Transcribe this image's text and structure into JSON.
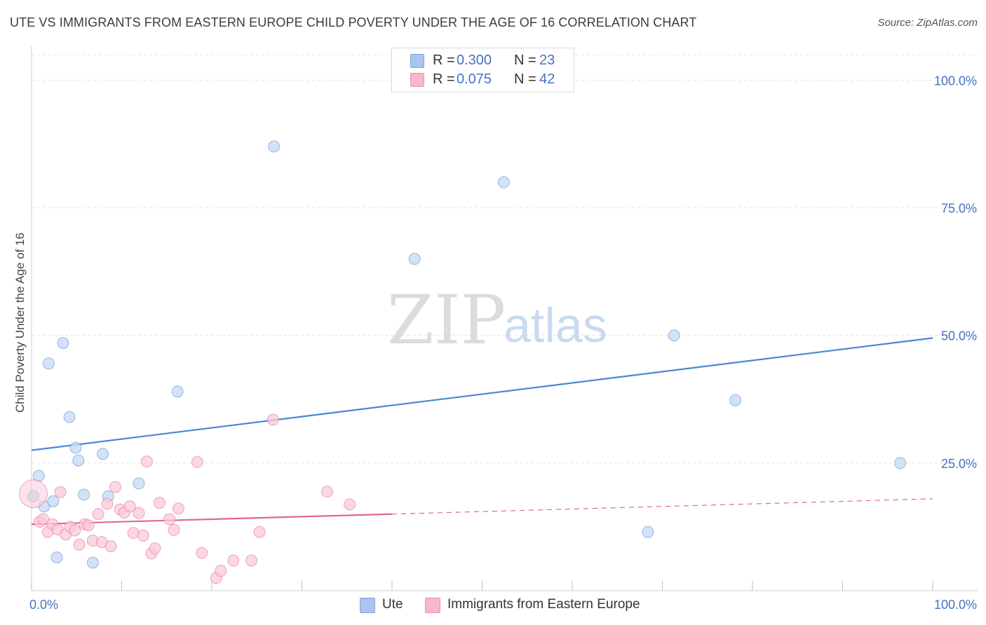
{
  "title": "UTE VS IMMIGRANTS FROM EASTERN EUROPE CHILD POVERTY UNDER THE AGE OF 16 CORRELATION CHART",
  "source": "Source: ZipAtlas.com",
  "watermark": {
    "part1": "ZIP",
    "part2": "atlas"
  },
  "legend": {
    "rows": [
      {
        "r_label": "R =",
        "r_value": "0.300",
        "n_label": "N =",
        "n_value": "23",
        "color": "#a9c5ee",
        "stroke": "#7fa6dd"
      },
      {
        "r_label": "R =",
        "r_value": "0.075",
        "n_label": "N =",
        "n_value": "42",
        "color": "#f6b8cb",
        "stroke": "#ec8fab"
      }
    ]
  },
  "bottom_legend": [
    {
      "label": "Ute",
      "color": "#a9c5ee",
      "stroke": "#7fa6dd"
    },
    {
      "label": "Immigrants from Eastern Europe",
      "color": "#f6b8cb",
      "stroke": "#ec8fab"
    }
  ],
  "chart_data": {
    "type": "scatter",
    "title": "UTE VS IMMIGRANTS FROM EASTERN EUROPE CHILD POVERTY UNDER THE AGE OF 16 CORRELATION CHART",
    "xlabel": "",
    "ylabel": "Child Poverty Under the Age of 16",
    "xlim": [
      0,
      100
    ],
    "ylim": [
      0,
      105
    ],
    "x_tick_labels": [
      "0.0%",
      "100.0%"
    ],
    "y_ticks": [
      25,
      50,
      75,
      100
    ],
    "y_tick_labels": [
      "25.0%",
      "50.0%",
      "75.0%",
      "100.0%"
    ],
    "grid": true,
    "series": [
      {
        "name": "Ute",
        "color": "#4a86d8",
        "fill": "#c5d8f4",
        "trend": {
          "x0": 0,
          "y0": 27.5,
          "x1": 100,
          "y1": 49.5,
          "dashed_from": null
        },
        "points": [
          {
            "x": 0.2,
            "y": 18.5
          },
          {
            "x": 0.8,
            "y": 22.5
          },
          {
            "x": 1.4,
            "y": 16.5
          },
          {
            "x": 1.9,
            "y": 44.5
          },
          {
            "x": 2.4,
            "y": 17.5
          },
          {
            "x": 2.8,
            "y": 6.5
          },
          {
            "x": 3.5,
            "y": 48.5
          },
          {
            "x": 4.2,
            "y": 34.0
          },
          {
            "x": 4.9,
            "y": 28.0
          },
          {
            "x": 5.2,
            "y": 25.5
          },
          {
            "x": 5.8,
            "y": 18.8
          },
          {
            "x": 6.8,
            "y": 5.5
          },
          {
            "x": 7.9,
            "y": 26.8
          },
          {
            "x": 8.5,
            "y": 18.5
          },
          {
            "x": 11.9,
            "y": 21.0
          },
          {
            "x": 16.2,
            "y": 39.0
          },
          {
            "x": 26.9,
            "y": 87.0
          },
          {
            "x": 42.5,
            "y": 65.0
          },
          {
            "x": 52.4,
            "y": 80.0
          },
          {
            "x": 68.4,
            "y": 11.5
          },
          {
            "x": 71.3,
            "y": 50.0
          },
          {
            "x": 78.1,
            "y": 37.3
          },
          {
            "x": 96.4,
            "y": 25.0
          }
        ]
      },
      {
        "name": "Immigrants from Eastern Europe",
        "color": "#e0688f",
        "fill": "#f9cad8",
        "trend": {
          "x0": 0,
          "y0": 13.0,
          "x1": 100,
          "y1": 18.0,
          "dashed_from": 40
        },
        "points": [
          {
            "x": 0.2,
            "y": 19.0,
            "big": true
          },
          {
            "x": 0.9,
            "y": 13.5
          },
          {
            "x": 1.3,
            "y": 14.0
          },
          {
            "x": 1.8,
            "y": 11.5
          },
          {
            "x": 2.3,
            "y": 13.0
          },
          {
            "x": 2.9,
            "y": 12.0
          },
          {
            "x": 3.2,
            "y": 19.3
          },
          {
            "x": 3.8,
            "y": 11.0
          },
          {
            "x": 4.3,
            "y": 12.5
          },
          {
            "x": 4.8,
            "y": 11.8
          },
          {
            "x": 5.3,
            "y": 9.0
          },
          {
            "x": 5.9,
            "y": 13.0
          },
          {
            "x": 6.3,
            "y": 12.8
          },
          {
            "x": 6.8,
            "y": 9.8
          },
          {
            "x": 7.4,
            "y": 15.0
          },
          {
            "x": 7.8,
            "y": 9.5
          },
          {
            "x": 8.4,
            "y": 17.0
          },
          {
            "x": 8.8,
            "y": 8.7
          },
          {
            "x": 9.3,
            "y": 20.3
          },
          {
            "x": 9.8,
            "y": 15.9
          },
          {
            "x": 10.3,
            "y": 15.3
          },
          {
            "x": 10.9,
            "y": 16.5
          },
          {
            "x": 11.3,
            "y": 11.3
          },
          {
            "x": 11.9,
            "y": 15.2
          },
          {
            "x": 12.4,
            "y": 10.8
          },
          {
            "x": 12.8,
            "y": 25.3
          },
          {
            "x": 13.3,
            "y": 7.3
          },
          {
            "x": 13.7,
            "y": 8.3
          },
          {
            "x": 14.2,
            "y": 17.2
          },
          {
            "x": 15.3,
            "y": 14.0
          },
          {
            "x": 15.8,
            "y": 11.9
          },
          {
            "x": 16.3,
            "y": 16.1
          },
          {
            "x": 18.4,
            "y": 25.2
          },
          {
            "x": 18.9,
            "y": 7.4
          },
          {
            "x": 20.5,
            "y": 2.5
          },
          {
            "x": 21.0,
            "y": 3.9
          },
          {
            "x": 22.4,
            "y": 5.9
          },
          {
            "x": 24.4,
            "y": 5.9
          },
          {
            "x": 25.3,
            "y": 11.5
          },
          {
            "x": 26.8,
            "y": 33.5
          },
          {
            "x": 32.8,
            "y": 19.4
          },
          {
            "x": 35.3,
            "y": 16.9
          }
        ]
      }
    ]
  }
}
